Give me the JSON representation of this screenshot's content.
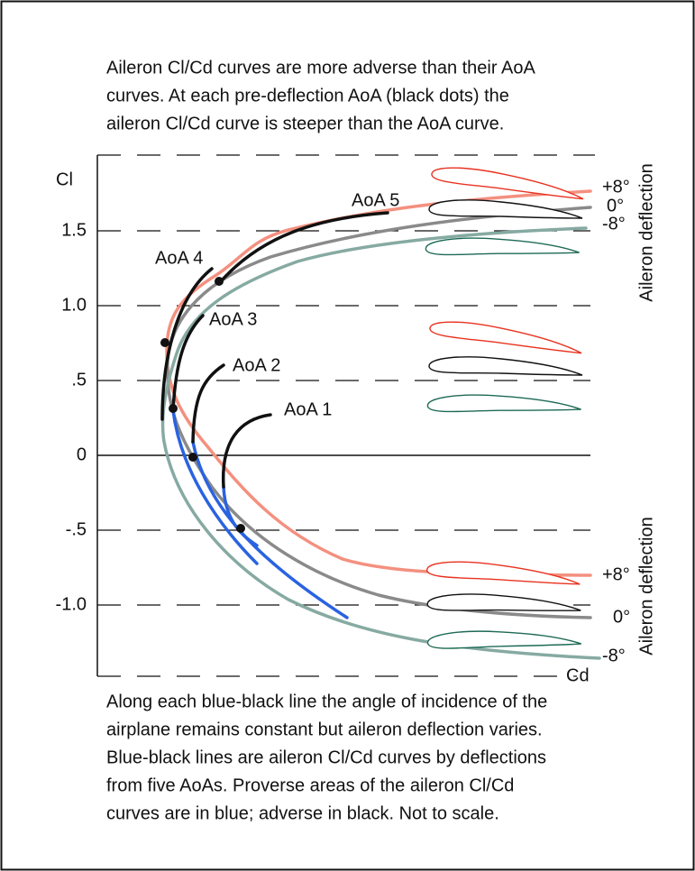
{
  "intro_text": [
    "Aileron Cl/Cd curves are more adverse than their AoA",
    "curves.  At each pre-deflection AoA (black dots) the",
    "aileron Cl/Cd curve is steeper than the AoA curve."
  ],
  "y_axis": {
    "label": "Cl",
    "ticks": [
      {
        "value": 1.5,
        "label": "1.5"
      },
      {
        "value": 1,
        "label": "1.0"
      },
      {
        "value": 0.5,
        "label": ".5"
      },
      0,
      {
        "value": -0.5,
        "label": "-.5"
      },
      {
        "value": -1,
        "label": "-1.0"
      }
    ]
  },
  "x_axis": {
    "label": "Cd"
  },
  "aoa_labels": [
    "AoA 5",
    "AoA 4",
    "AoA 3",
    "AoA 2",
    "AoA 1"
  ],
  "upper_deflections": {
    "title": "Aileron deflection",
    "labels": [
      "+8°",
      "0°",
      "-8°"
    ]
  },
  "lower_deflections": {
    "title": "Aileron deflection",
    "labels": [
      "+8°",
      "0°",
      "-8°"
    ]
  },
  "caption": [
    "Along each blue-black line the angle of incidence of the",
    "airplane remains constant but aileron deflection varies.",
    "Blue-black lines are aileron Cl/Cd curves by deflections",
    "from five AoAs. Proverse areas of the aileron Cl/Cd",
    "curves are in blue; adverse in black. Not to scale."
  ]
}
